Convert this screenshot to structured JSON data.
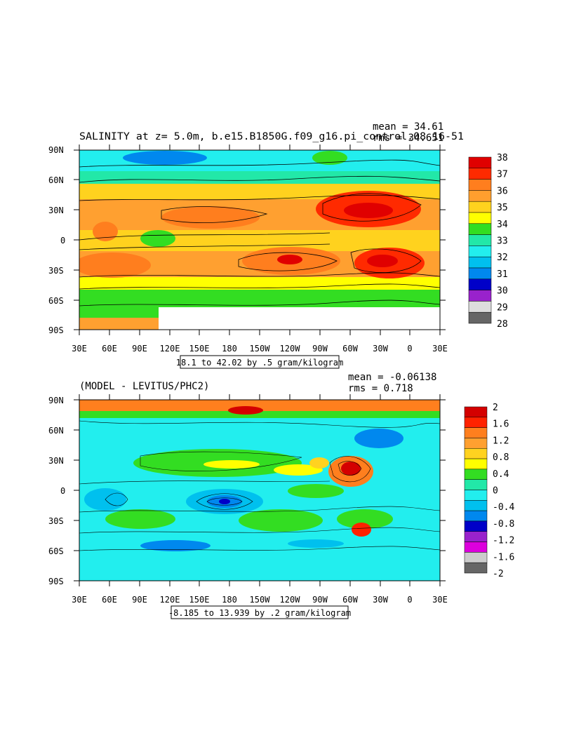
{
  "chart_data": [
    {
      "type": "heatmap",
      "title": "SALINITY at z=   5.0m, b.e15.B1850G.f09_g16.pi_control.08 16-51",
      "stats": {
        "mean": "mean = 34.61",
        "rms": "rms = 34.651"
      },
      "x_ticks": [
        "30E",
        "60E",
        "90E",
        "120E",
        "150E",
        "180",
        "150W",
        "120W",
        "90W",
        "60W",
        "30W",
        "0",
        "30E"
      ],
      "y_ticks": [
        "90N",
        "60N",
        "30N",
        "0",
        "30S",
        "60S",
        "90S"
      ],
      "xlim": [
        30,
        390
      ],
      "ylim": [
        -90,
        90
      ],
      "contour_info": "18.1 to 42.02 by .5 gram/kilogram",
      "colorbar": {
        "labels": [
          "38",
          "37",
          "36",
          "35",
          "34",
          "33",
          "32",
          "31",
          "30",
          "29",
          "28"
        ],
        "colors": [
          "#e00000",
          "#ff2a00",
          "#ff7e1e",
          "#ff9f2e",
          "#ffd21e",
          "#ffff00",
          "#33dd22",
          "#22e8a8",
          "#22eeee",
          "#00c0ee",
          "#0088ee",
          "#0000c8",
          "#9922cc",
          "#dddddd",
          "#666666"
        ]
      },
      "values_summary": {
        "atlantic_subtropics": 37.2,
        "indian_arabian_sea": 36.2,
        "pacific_subtropics": 35.6,
        "equatorial_pacific": 34.6,
        "southern_ocean": 34.0,
        "arctic": 32.0
      }
    },
    {
      "type": "heatmap",
      "title": "(MODEL - LEVITUS/PHC2)",
      "stats": {
        "mean": "mean = -0.06138",
        "rms": "rms = 0.718"
      },
      "x_ticks": [
        "30E",
        "60E",
        "90E",
        "120E",
        "150E",
        "180",
        "150W",
        "120W",
        "90W",
        "60W",
        "30W",
        "0",
        "30E"
      ],
      "y_ticks": [
        "90N",
        "60N",
        "30N",
        "0",
        "30S",
        "60S",
        "90S"
      ],
      "xlim": [
        30,
        390
      ],
      "ylim": [
        -90,
        90
      ],
      "contour_info": "-8.185 to 13.939 by .2 gram/kilogram",
      "colorbar": {
        "labels": [
          "2",
          "1.6",
          "1.2",
          "0.8",
          "0.4",
          "0",
          "-0.4",
          "-0.8",
          "-1.2",
          "-1.6",
          "-2"
        ],
        "colors": [
          "#d40000",
          "#ff2200",
          "#ff7f1e",
          "#ffa030",
          "#ffd220",
          "#ffff00",
          "#33dd22",
          "#22e8a8",
          "#22eeee",
          "#00c0ee",
          "#0088ee",
          "#0000c8",
          "#9922cc",
          "#dd00dd",
          "#cccccc",
          "#666666"
        ]
      },
      "values_summary": {
        "arctic": 0.9,
        "north_atlantic": 1.4,
        "mid_pacific": 0.3,
        "south_pacific_min": -1.0,
        "typical_open_ocean": -0.2
      }
    }
  ]
}
